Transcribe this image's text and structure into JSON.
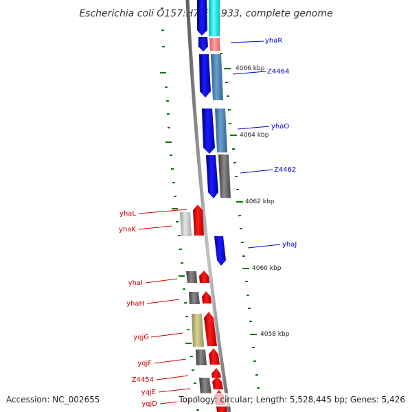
{
  "title": "Escherichia coli O157:H7 EDL933, complete genome",
  "footer": {
    "accession": "Accession: NC_002655",
    "summary": "Topology: circular; Length: 5,528,445 bp; Genes: 5,426"
  },
  "kbp_ticks": [
    "4066 kbp",
    "4064 kbp",
    "4062 kbp",
    "4060 kbp",
    "4058 kbp"
  ],
  "gene_labels_right": [
    "yhaR",
    "Z4464",
    "yhaO",
    "Z4462",
    "yhaJ"
  ],
  "gene_labels_left": [
    "yhaL",
    "yhaK",
    "yhaI",
    "yhaH",
    "yqjG",
    "yqjF",
    "Z4454",
    "yqjE",
    "yqjD"
  ],
  "colors": {
    "forward_label": "#0000cc",
    "reverse_label": "#cc0000",
    "forward_strand_gene": "#0000ee",
    "reverse_strand_gene": "#ee0000",
    "backbone": "#888888",
    "tick_marks": "#007700"
  }
}
